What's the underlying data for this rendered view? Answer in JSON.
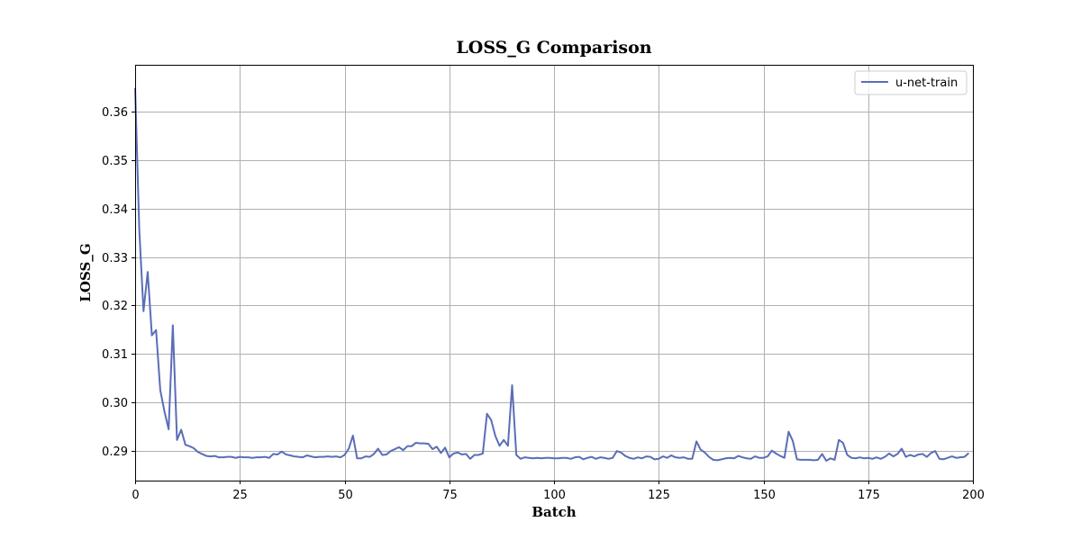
{
  "chart_data": {
    "type": "line",
    "title": "LOSS_G Comparison",
    "xlabel": "Batch",
    "ylabel": "LOSS_G",
    "xlim": [
      0,
      200
    ],
    "ylim": [
      0.2838,
      0.3697
    ],
    "xticks": [
      0,
      25,
      50,
      75,
      100,
      125,
      150,
      175,
      200
    ],
    "yticks": [
      0.29,
      0.3,
      0.31,
      0.32,
      0.33,
      0.34,
      0.35,
      0.36
    ],
    "ytick_labels": [
      "0.29",
      "0.30",
      "0.31",
      "0.32",
      "0.33",
      "0.34",
      "0.35",
      "0.36"
    ],
    "grid": true,
    "legend_position": "top-right",
    "series": [
      {
        "name": "u-net-train",
        "color": "#5b6db8",
        "values": [
          0.3649,
          0.3355,
          0.3188,
          0.3269,
          0.3138,
          0.3149,
          0.3025,
          0.2981,
          0.2944,
          0.3159,
          0.2922,
          0.2943,
          0.2912,
          0.2909,
          0.2905,
          0.2897,
          0.2893,
          0.2889,
          0.2888,
          0.2889,
          0.2886,
          0.2886,
          0.2887,
          0.2887,
          0.2885,
          0.2887,
          0.2886,
          0.2886,
          0.2885,
          0.2886,
          0.2886,
          0.2887,
          0.2885,
          0.2893,
          0.2892,
          0.2898,
          0.2892,
          0.289,
          0.2888,
          0.2887,
          0.2886,
          0.289,
          0.2888,
          0.2886,
          0.2887,
          0.2887,
          0.2888,
          0.2887,
          0.2888,
          0.2886,
          0.2891,
          0.2904,
          0.2931,
          0.2884,
          0.2884,
          0.2888,
          0.2887,
          0.2893,
          0.2904,
          0.2891,
          0.2892,
          0.2899,
          0.2903,
          0.2907,
          0.2901,
          0.2909,
          0.2909,
          0.2916,
          0.2915,
          0.2915,
          0.2914,
          0.2903,
          0.2908,
          0.2895,
          0.2906,
          0.2886,
          0.2894,
          0.2896,
          0.2892,
          0.2893,
          0.2883,
          0.2891,
          0.2891,
          0.2894,
          0.2976,
          0.2963,
          0.293,
          0.291,
          0.2922,
          0.291,
          0.3035,
          0.2891,
          0.2883,
          0.2886,
          0.2885,
          0.2884,
          0.2885,
          0.2884,
          0.2885,
          0.2885,
          0.2884,
          0.2884,
          0.2885,
          0.2885,
          0.2883,
          0.2886,
          0.2887,
          0.2882,
          0.2885,
          0.2887,
          0.2883,
          0.2886,
          0.2885,
          0.2883,
          0.2885,
          0.2899,
          0.2896,
          0.2889,
          0.2885,
          0.2883,
          0.2886,
          0.2884,
          0.2888,
          0.2887,
          0.2882,
          0.2883,
          0.2888,
          0.2885,
          0.289,
          0.2886,
          0.2885,
          0.2886,
          0.2883,
          0.2883,
          0.2919,
          0.2902,
          0.2896,
          0.2887,
          0.2881,
          0.288,
          0.2882,
          0.2884,
          0.2885,
          0.2884,
          0.2889,
          0.2886,
          0.2884,
          0.2883,
          0.2888,
          0.2885,
          0.2885,
          0.2888,
          0.29,
          0.2894,
          0.2889,
          0.2885,
          0.2939,
          0.292,
          0.2882,
          0.2881,
          0.2881,
          0.2881,
          0.288,
          0.2881,
          0.2893,
          0.2879,
          0.2884,
          0.2881,
          0.2922,
          0.2916,
          0.2891,
          0.2885,
          0.2884,
          0.2886,
          0.2884,
          0.2885,
          0.2883,
          0.2886,
          0.2883,
          0.2887,
          0.2894,
          0.2888,
          0.2893,
          0.2904,
          0.2887,
          0.2891,
          0.2888,
          0.2892,
          0.2893,
          0.2887,
          0.2895,
          0.2899,
          0.2883,
          0.2882,
          0.2885,
          0.2888,
          0.2885,
          0.2886,
          0.2887,
          0.2895
        ]
      }
    ]
  }
}
